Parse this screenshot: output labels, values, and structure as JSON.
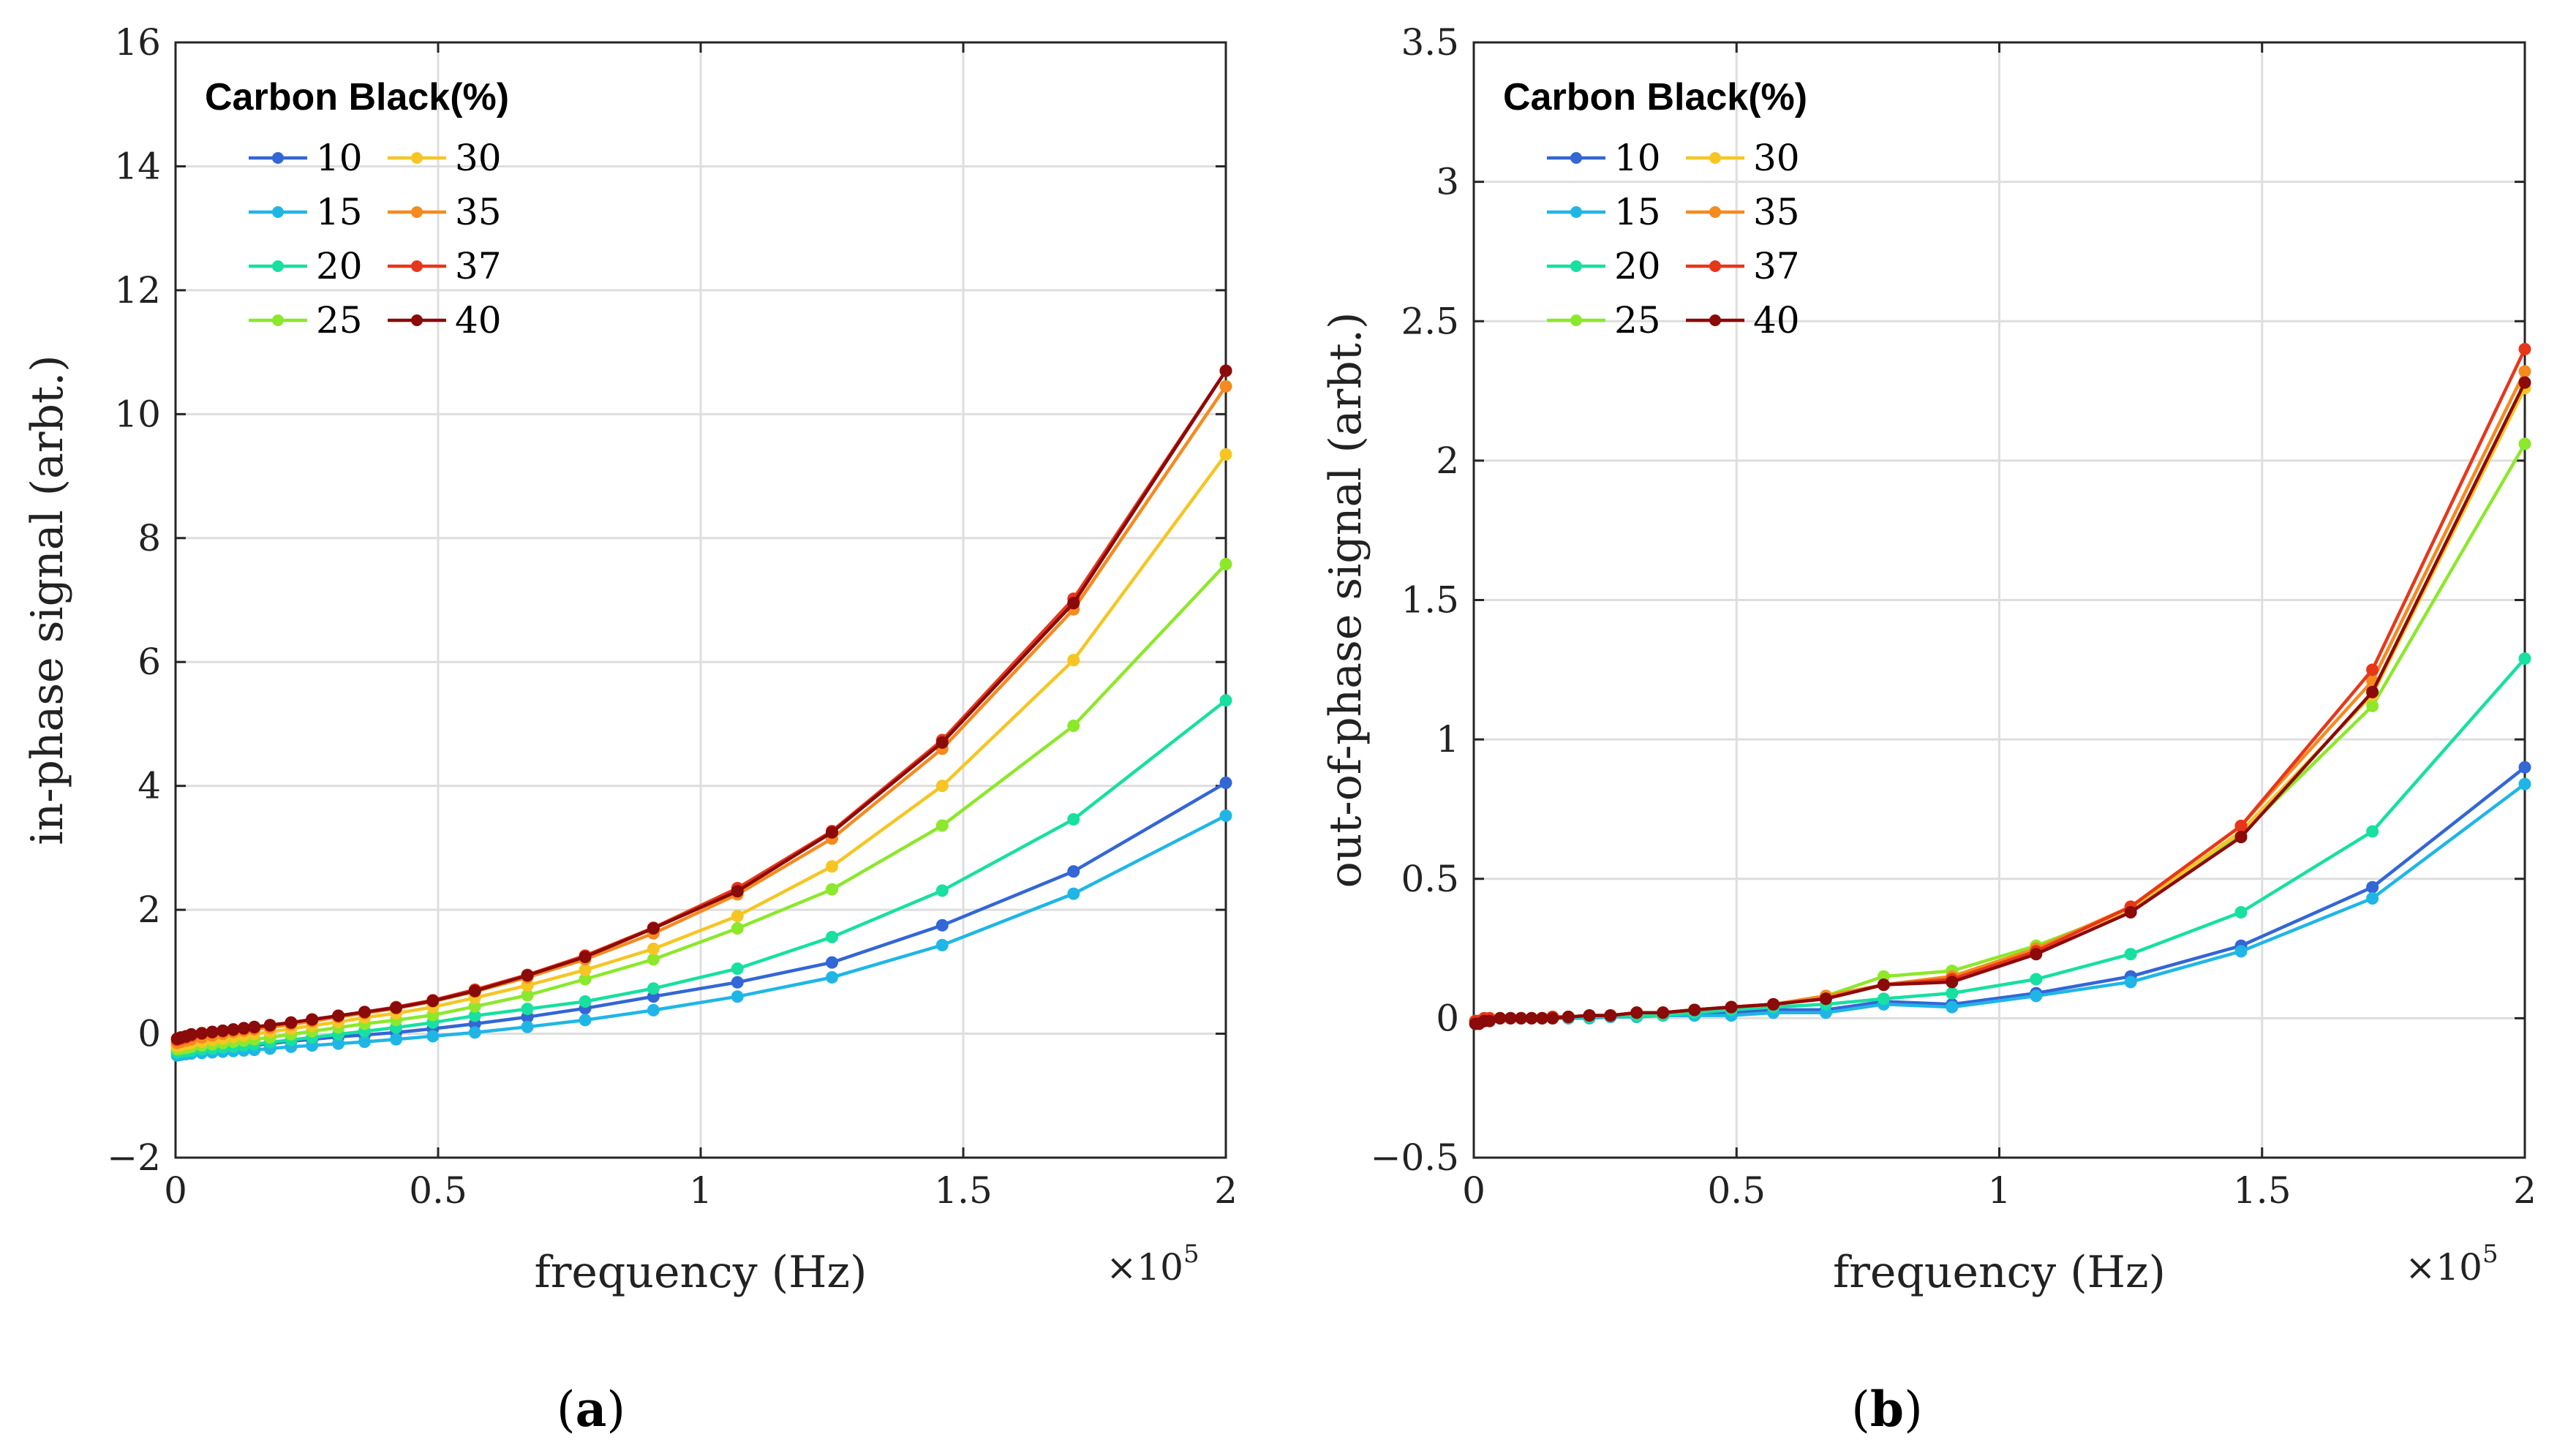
{
  "chart_data": [
    {
      "type": "line",
      "panel_label": "(a)",
      "panel_letter": "a",
      "xlabel": "frequency (Hz)",
      "x_exponent": "×10",
      "x_exponent_power": "5",
      "ylabel": "in-phase signal (arbt.)",
      "xlim": [
        0,
        2
      ],
      "ylim": [
        -2,
        16
      ],
      "xticks": [
        0,
        0.5,
        1,
        1.5,
        2
      ],
      "xtick_labels": [
        "0",
        "0.5",
        "1",
        "1.5",
        "2"
      ],
      "yticks": [
        -2,
        0,
        2,
        4,
        6,
        8,
        10,
        12,
        14,
        16
      ],
      "ytick_labels": [
        "−2",
        "0",
        "2",
        "4",
        "6",
        "8",
        "10",
        "12",
        "14",
        "16"
      ],
      "grid": true,
      "legend_title": "Carbon Black(%)",
      "legend_position": "top-left",
      "x": [
        0.003,
        0.01,
        0.02,
        0.03,
        0.05,
        0.07,
        0.09,
        0.11,
        0.13,
        0.15,
        0.18,
        0.22,
        0.26,
        0.31,
        0.36,
        0.42,
        0.49,
        0.57,
        0.67,
        0.78,
        0.91,
        1.07,
        1.25,
        1.46,
        1.71,
        2.0
      ],
      "series": [
        {
          "name": "10",
          "color": "#3366d6",
          "values": [
            -0.3,
            -0.29,
            -0.28,
            -0.27,
            -0.26,
            -0.24,
            -0.23,
            -0.22,
            -0.21,
            -0.19,
            -0.16,
            -0.12,
            -0.09,
            -0.05,
            -0.02,
            0.02,
            0.08,
            0.16,
            0.27,
            0.41,
            0.6,
            0.83,
            1.15,
            1.75,
            2.62,
            4.05
          ]
        },
        {
          "name": "15",
          "color": "#1fb6e6",
          "values": [
            -0.35,
            -0.34,
            -0.33,
            -0.32,
            -0.31,
            -0.3,
            -0.29,
            -0.28,
            -0.27,
            -0.26,
            -0.24,
            -0.21,
            -0.19,
            -0.16,
            -0.13,
            -0.09,
            -0.04,
            0.02,
            0.11,
            0.22,
            0.38,
            0.6,
            0.91,
            1.43,
            2.26,
            3.52
          ]
        },
        {
          "name": "20",
          "color": "#17e0a0",
          "values": [
            -0.3,
            -0.29,
            -0.28,
            -0.27,
            -0.25,
            -0.24,
            -0.22,
            -0.21,
            -0.19,
            -0.17,
            -0.14,
            -0.1,
            -0.06,
            -0.01,
            0.04,
            0.1,
            0.18,
            0.29,
            0.4,
            0.52,
            0.73,
            1.05,
            1.56,
            2.31,
            3.46,
            5.38
          ]
        },
        {
          "name": "25",
          "color": "#8ce82a",
          "values": [
            -0.25,
            -0.24,
            -0.23,
            -0.21,
            -0.19,
            -0.17,
            -0.15,
            -0.13,
            -0.11,
            -0.09,
            -0.06,
            -0.01,
            0.04,
            0.1,
            0.16,
            0.22,
            0.3,
            0.44,
            0.62,
            0.88,
            1.2,
            1.7,
            2.33,
            3.36,
            4.97,
            7.58
          ]
        },
        {
          "name": "30",
          "color": "#f5c623",
          "values": [
            -0.2,
            -0.19,
            -0.17,
            -0.15,
            -0.13,
            -0.1,
            -0.08,
            -0.05,
            -0.03,
            0.0,
            0.03,
            0.08,
            0.13,
            0.19,
            0.26,
            0.33,
            0.43,
            0.58,
            0.78,
            1.03,
            1.37,
            1.9,
            2.7,
            4.0,
            6.03,
            9.35
          ]
        },
        {
          "name": "35",
          "color": "#f58a1f",
          "values": [
            -0.15,
            -0.13,
            -0.11,
            -0.09,
            -0.06,
            -0.03,
            0.0,
            0.03,
            0.05,
            0.07,
            0.1,
            0.15,
            0.2,
            0.27,
            0.33,
            0.41,
            0.52,
            0.68,
            0.91,
            1.2,
            1.62,
            2.25,
            3.15,
            4.6,
            6.85,
            10.45
          ]
        },
        {
          "name": "37",
          "color": "#e8361a",
          "values": [
            -0.1,
            -0.08,
            -0.06,
            -0.03,
            0.0,
            0.02,
            0.04,
            0.06,
            0.08,
            0.1,
            0.13,
            0.18,
            0.23,
            0.29,
            0.35,
            0.43,
            0.54,
            0.71,
            0.95,
            1.26,
            1.71,
            2.35,
            3.27,
            4.74,
            7.02,
            10.7
          ]
        },
        {
          "name": "40",
          "color": "#8b0a0a",
          "values": [
            -0.08,
            -0.06,
            -0.04,
            -0.01,
            0.01,
            0.03,
            0.05,
            0.07,
            0.09,
            0.11,
            0.14,
            0.18,
            0.23,
            0.29,
            0.35,
            0.42,
            0.53,
            0.69,
            0.94,
            1.24,
            1.7,
            2.3,
            3.25,
            4.7,
            6.95,
            10.7
          ]
        }
      ]
    },
    {
      "type": "line",
      "panel_label": "(b)",
      "panel_letter": "b",
      "xlabel": "frequency (Hz)",
      "x_exponent": "×10",
      "x_exponent_power": "5",
      "ylabel": "out-of-phase signal (arbt.)",
      "xlim": [
        0,
        2
      ],
      "ylim": [
        -0.5,
        3.5
      ],
      "xticks": [
        0,
        0.5,
        1,
        1.5,
        2
      ],
      "xtick_labels": [
        "0",
        "0.5",
        "1",
        "1.5",
        "2"
      ],
      "yticks": [
        -0.5,
        0,
        0.5,
        1,
        1.5,
        2,
        2.5,
        3,
        3.5
      ],
      "ytick_labels": [
        "−0.5",
        "0",
        "0.5",
        "1",
        "1.5",
        "2",
        "2.5",
        "3",
        "3.5"
      ],
      "grid": true,
      "legend_title": "Carbon Black(%)",
      "legend_position": "top-left",
      "x": [
        0.003,
        0.01,
        0.02,
        0.03,
        0.05,
        0.07,
        0.09,
        0.11,
        0.13,
        0.15,
        0.18,
        0.22,
        0.26,
        0.31,
        0.36,
        0.42,
        0.49,
        0.57,
        0.67,
        0.78,
        0.91,
        1.07,
        1.25,
        1.46,
        1.71,
        2.0
      ],
      "series": [
        {
          "name": "10",
          "color": "#3366d6",
          "values": [
            -0.01,
            -0.01,
            -0.01,
            0.0,
            0.0,
            0.0,
            0.0,
            0.0,
            0.0,
            0.0,
            0.0,
            0.005,
            0.005,
            0.01,
            0.01,
            0.01,
            0.02,
            0.03,
            0.03,
            0.06,
            0.05,
            0.09,
            0.15,
            0.26,
            0.47,
            0.9
          ]
        },
        {
          "name": "15",
          "color": "#1fb6e6",
          "values": [
            -0.01,
            -0.01,
            -0.01,
            0.0,
            0.0,
            0.0,
            0.0,
            0.0,
            0.0,
            0.0,
            0.0,
            0.0,
            0.005,
            0.005,
            0.01,
            0.01,
            0.01,
            0.02,
            0.02,
            0.05,
            0.04,
            0.08,
            0.13,
            0.24,
            0.43,
            0.84
          ]
        },
        {
          "name": "20",
          "color": "#17e0a0",
          "values": [
            -0.01,
            -0.01,
            -0.01,
            0.0,
            0.0,
            0.0,
            0.0,
            0.0,
            0.0,
            0.0,
            0.005,
            0.005,
            0.01,
            0.01,
            0.01,
            0.02,
            0.03,
            0.04,
            0.05,
            0.07,
            0.09,
            0.14,
            0.23,
            0.38,
            0.67,
            1.29
          ]
        },
        {
          "name": "25",
          "color": "#8ce82a",
          "values": [
            -0.01,
            -0.01,
            0.0,
            0.0,
            0.0,
            0.0,
            0.0,
            0.0,
            0.0,
            0.0,
            0.005,
            0.01,
            0.01,
            0.02,
            0.02,
            0.03,
            0.04,
            0.05,
            0.08,
            0.15,
            0.17,
            0.26,
            0.39,
            0.66,
            1.12,
            2.06
          ]
        },
        {
          "name": "30",
          "color": "#f5c623",
          "values": [
            -0.01,
            -0.01,
            0.0,
            0.0,
            0.0,
            0.0,
            0.0,
            0.0,
            0.0,
            0.005,
            0.005,
            0.01,
            0.01,
            0.02,
            0.02,
            0.03,
            0.04,
            0.05,
            0.08,
            0.12,
            0.15,
            0.25,
            0.39,
            0.67,
            1.16,
            2.26
          ]
        },
        {
          "name": "35",
          "color": "#f58a1f",
          "values": [
            -0.01,
            -0.01,
            0.0,
            0.0,
            0.0,
            0.0,
            0.0,
            0.0,
            0.0,
            0.005,
            0.005,
            0.01,
            0.01,
            0.02,
            0.02,
            0.03,
            0.04,
            0.05,
            0.08,
            0.12,
            0.15,
            0.25,
            0.4,
            0.69,
            1.21,
            2.32
          ]
        },
        {
          "name": "37",
          "color": "#e8361a",
          "values": [
            -0.01,
            -0.01,
            0.0,
            0.0,
            0.0,
            0.0,
            0.0,
            0.0,
            0.0,
            0.005,
            0.005,
            0.01,
            0.01,
            0.02,
            0.02,
            0.03,
            0.04,
            0.05,
            0.07,
            0.12,
            0.14,
            0.24,
            0.4,
            0.69,
            1.25,
            2.4
          ]
        },
        {
          "name": "40",
          "color": "#8b0a0a",
          "values": [
            -0.02,
            -0.02,
            -0.01,
            -0.01,
            0.0,
            0.0,
            0.0,
            0.0,
            0.0,
            0.0,
            0.005,
            0.01,
            0.01,
            0.02,
            0.02,
            0.03,
            0.04,
            0.05,
            0.07,
            0.12,
            0.13,
            0.23,
            0.38,
            0.65,
            1.17,
            2.28
          ]
        }
      ]
    }
  ]
}
